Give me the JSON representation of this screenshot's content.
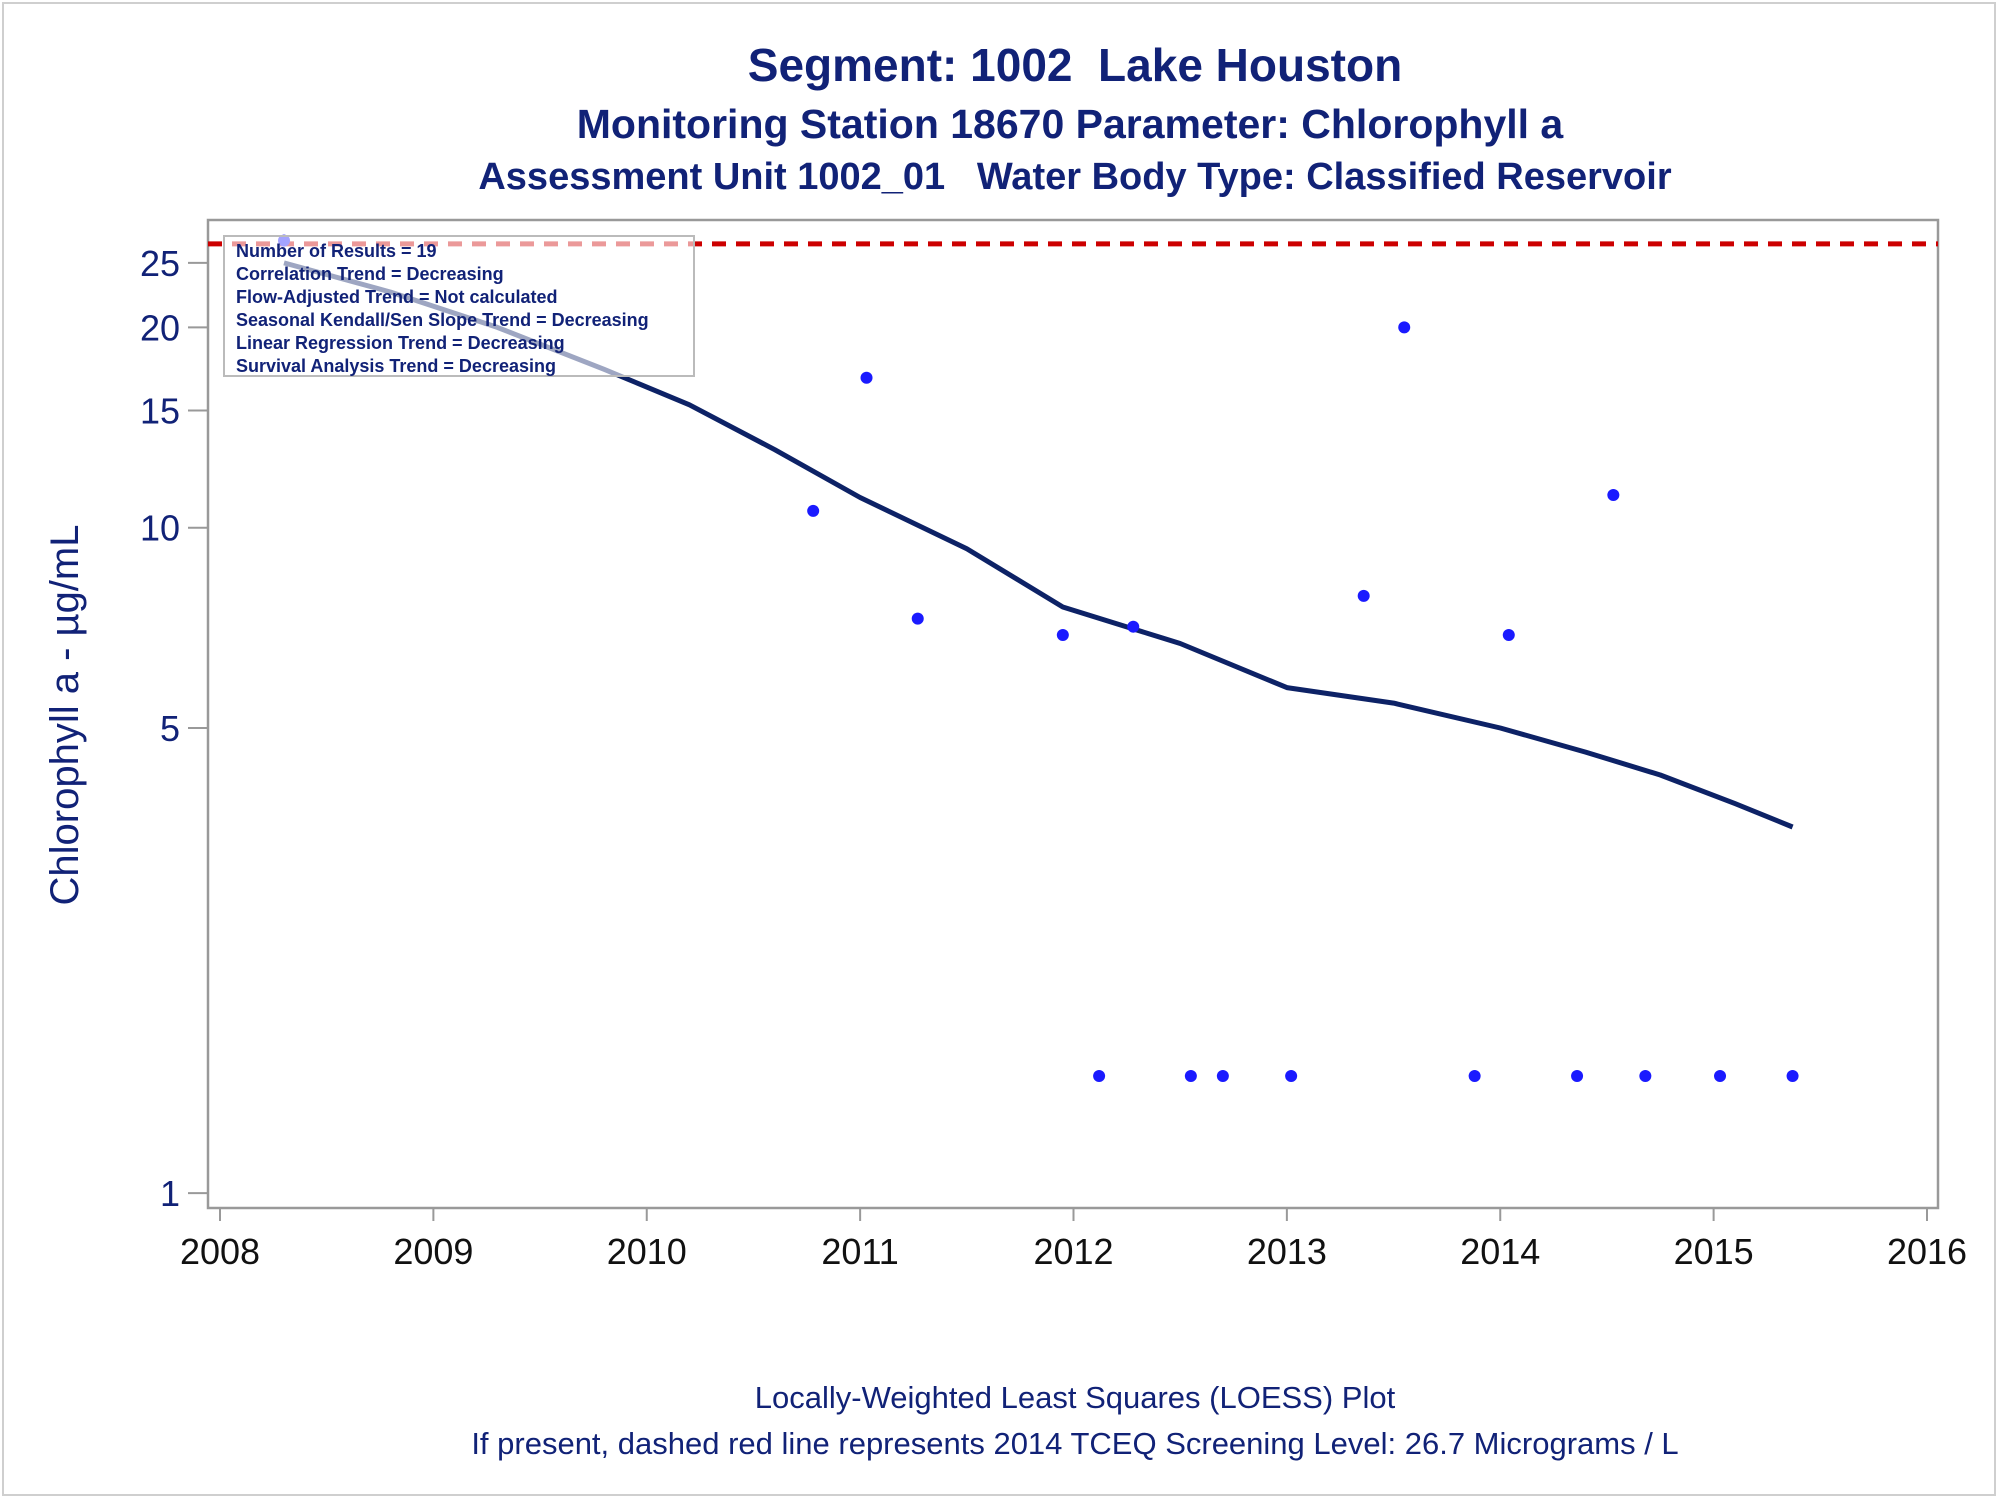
{
  "title": "Segment: 1002  Lake Houston",
  "subtitle1": "Monitoring Station 18670 Parameter: Chlorophyll a",
  "subtitle2": "Assessment Unit 1002_01   Water Body Type: Classified Reservoir",
  "footnote1": "Locally-Weighted Least Squares (LOESS) Plot",
  "footnote2": "If present, dashed red line represents 2014 TCEQ Screening Level: 26.7 Micrograms / L",
  "legend_lines": [
    "Number of Results = 19",
    "Correlation Trend = Decreasing",
    "Flow-Adjusted Trend = Not calculated",
    "Seasonal Kendall/Sen Slope Trend = Decreasing",
    "Linear Regression Trend = Decreasing",
    "Survival Analysis Trend = Decreasing"
  ],
  "colors": {
    "text": "#112277",
    "points": "#1a1aff",
    "loess": "#0d2266",
    "screening": "#cc0000",
    "axis": "#999999"
  },
  "chart_data": {
    "type": "scatter",
    "ylabel": "Chlorophyll a -  µg/mL",
    "xlabel": "",
    "xlim": [
      2008,
      2016
    ],
    "ylim": [
      0.95,
      29
    ],
    "yscale": "log",
    "xticks": [
      2008,
      2009,
      2010,
      2011,
      2012,
      2013,
      2014,
      2015,
      2016
    ],
    "yticks": [
      1,
      5,
      10,
      15,
      20,
      25
    ],
    "grid": false,
    "screening_level": 26.7,
    "points": [
      {
        "x": 2008.3,
        "y": 27
      },
      {
        "x": 2010.78,
        "y": 10.6
      },
      {
        "x": 2011.03,
        "y": 16.8
      },
      {
        "x": 2011.27,
        "y": 7.3
      },
      {
        "x": 2011.95,
        "y": 6.9
      },
      {
        "x": 2012.12,
        "y": 1.5
      },
      {
        "x": 2012.28,
        "y": 7.1
      },
      {
        "x": 2012.55,
        "y": 1.5
      },
      {
        "x": 2012.7,
        "y": 1.5
      },
      {
        "x": 2013.02,
        "y": 1.5
      },
      {
        "x": 2013.36,
        "y": 7.9
      },
      {
        "x": 2013.55,
        "y": 20
      },
      {
        "x": 2013.88,
        "y": 1.5
      },
      {
        "x": 2014.04,
        "y": 6.9
      },
      {
        "x": 2014.36,
        "y": 1.5
      },
      {
        "x": 2014.53,
        "y": 11.2
      },
      {
        "x": 2014.68,
        "y": 1.5
      },
      {
        "x": 2015.03,
        "y": 1.5
      },
      {
        "x": 2015.37,
        "y": 1.5
      }
    ],
    "loess": [
      {
        "x": 2008.3,
        "y": 25.0
      },
      {
        "x": 2008.8,
        "y": 22.6
      },
      {
        "x": 2009.3,
        "y": 20.0
      },
      {
        "x": 2009.8,
        "y": 17.3
      },
      {
        "x": 2010.2,
        "y": 15.3
      },
      {
        "x": 2010.6,
        "y": 13.1
      },
      {
        "x": 2011.0,
        "y": 11.1
      },
      {
        "x": 2011.5,
        "y": 9.3
      },
      {
        "x": 2011.95,
        "y": 7.6
      },
      {
        "x": 2012.5,
        "y": 6.7
      },
      {
        "x": 2013.0,
        "y": 5.75
      },
      {
        "x": 2013.5,
        "y": 5.45
      },
      {
        "x": 2014.0,
        "y": 5.0
      },
      {
        "x": 2014.4,
        "y": 4.6
      },
      {
        "x": 2014.75,
        "y": 4.25
      },
      {
        "x": 2015.1,
        "y": 3.85
      },
      {
        "x": 2015.37,
        "y": 3.55
      }
    ]
  }
}
